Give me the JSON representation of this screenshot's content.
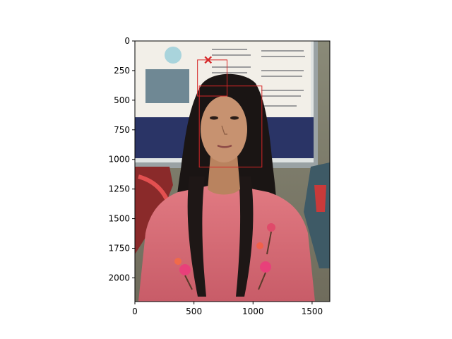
{
  "colors": {
    "annotation": "#d62728",
    "axis": "#000000",
    "background": "#ffffff"
  },
  "chart_data": {
    "type": "image",
    "title": "",
    "xlabel": "",
    "ylabel": "",
    "xlim": [
      0,
      1650
    ],
    "ylim": [
      2200,
      0
    ],
    "y_inverted": true,
    "grid": false,
    "legend": "none",
    "xticks": [
      0,
      500,
      1000,
      1500
    ],
    "yticks": [
      0,
      250,
      500,
      750,
      1000,
      1250,
      1500,
      1750,
      2000
    ],
    "image_content": "photograph of a young woman with long dark hair in a pink embroidered top, seated in front of a whiteboard with a printed poster and a painted mural",
    "boxes": [
      {
        "name": "box-upper",
        "x0": 530,
        "y0": 160,
        "x1": 780,
        "y1": 465
      },
      {
        "name": "box-face",
        "x0": 545,
        "y0": 380,
        "x1": 1075,
        "y1": 1065
      }
    ],
    "markers": [
      {
        "symbol": "x",
        "x": 620,
        "y": 160
      }
    ]
  }
}
